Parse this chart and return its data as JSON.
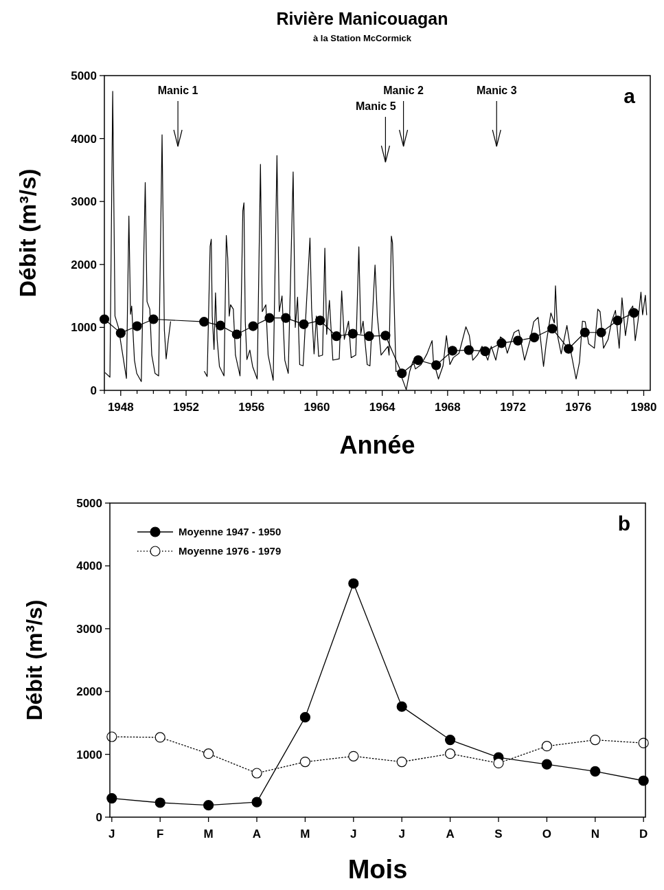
{
  "chart_data": [
    {
      "type": "line",
      "title": "Rivière Manicouagan",
      "subtitle": "à la Station McCormick",
      "xlabel": "Année",
      "ylabel": "Débit (m³/s)",
      "xlim": [
        1947,
        1980.4
      ],
      "ylim": [
        0,
        5000
      ],
      "yticks": [
        0,
        1000,
        2000,
        3000,
        4000,
        5000
      ],
      "xticks": [
        {
          "value": 1947,
          "label": null
        },
        1948,
        {
          "value": 1949,
          "label": null
        },
        {
          "value": 1950,
          "label": null
        },
        {
          "value": 1951,
          "label": null
        },
        1952,
        {
          "value": 1953,
          "label": null
        },
        {
          "value": 1954,
          "label": null
        },
        {
          "value": 1955,
          "label": null
        },
        1956,
        {
          "value": 1957,
          "label": null
        },
        {
          "value": 1958,
          "label": null
        },
        {
          "value": 1959,
          "label": null
        },
        1960,
        {
          "value": 1961,
          "label": null
        },
        {
          "value": 1962,
          "label": null
        },
        {
          "value": 1963,
          "label": null
        },
        1964,
        {
          "value": 1965,
          "label": null
        },
        {
          "value": 1966,
          "label": null
        },
        {
          "value": 1967,
          "label": null
        },
        1968,
        {
          "value": 1969,
          "label": null
        },
        {
          "value": 1970,
          "label": null
        },
        {
          "value": 1971,
          "label": null
        },
        1972,
        {
          "value": 1973,
          "label": null
        },
        {
          "value": 1974,
          "label": null
        },
        {
          "value": 1975,
          "label": null
        },
        1976,
        {
          "value": 1977,
          "label": null
        },
        {
          "value": 1978,
          "label": null
        },
        {
          "value": 1979,
          "label": null
        },
        1980
      ],
      "annotations": [
        "a"
      ],
      "ref_lines": [
        {
          "axis": "x",
          "value": 1951.5,
          "label": "Manic 1"
        },
        {
          "axis": "x",
          "value": 1964.2,
          "label": "Manic 5"
        },
        {
          "axis": "x",
          "value": 1965.3,
          "label": "Manic 2"
        },
        {
          "axis": "x",
          "value": 1971.0,
          "label": "Manic 3"
        }
      ],
      "series": [
        {
          "color": "#000000",
          "marker": "none",
          "x": [
            1947.05,
            1947.34,
            1947.51,
            1947.65,
            1947.86,
            1948.35,
            1948.5,
            1948.6,
            1948.67,
            1948.84,
            1948.98,
            1949.26,
            1949.5,
            1949.61,
            1949.78,
            1949.9,
            1950.1,
            1950.32,
            1950.53,
            1950.67,
            1950.78,
            1950.9,
            1951.05,
            1952,
            1953.12,
            1953.29,
            1953.47,
            1953.54,
            1953.6,
            1953.71,
            1953.8,
            1953.9,
            1954.04,
            1954.32,
            1954.46,
            1954.55,
            1954.64,
            1954.72,
            1954.89,
            1955.02,
            1955.3,
            1955.47,
            1955.54,
            1955.62,
            1955.72,
            1955.9,
            1956.07,
            1956.35,
            1956.55,
            1956.66,
            1956.88,
            1957.02,
            1957.33,
            1957.56,
            1957.7,
            1957.87,
            1958.04,
            1958.25,
            1958.55,
            1958.68,
            1958.82,
            1958.95,
            1959.16,
            1959.58,
            1959.68,
            1959.83,
            1959.97,
            1960.11,
            1960.35,
            1960.49,
            1960.6,
            1960.77,
            1960.98,
            1961.37,
            1961.52,
            1961.68,
            1961.94,
            1962.1,
            1962.38,
            1962.57,
            1962.69,
            1962.83,
            1963.08,
            1963.25,
            1963.56,
            1963.7,
            1963.93,
            1964.35,
            1964.42,
            1964.56,
            1964.63,
            1964.77,
            1964.84,
            1965.05,
            1965.47,
            1965.68,
            1965.89,
            1966.03,
            1966.38,
            1966.74,
            1967.05,
            1967.13,
            1967.44,
            1967.72,
            1967.93,
            1968.14,
            1968.35,
            1968.7,
            1969.12,
            1969.33,
            1969.54,
            1969.82,
            1970.11,
            1970.46,
            1970.67,
            1970.95,
            1971.23,
            1971.44,
            1971.65,
            1972.07,
            1972.35,
            1972.71,
            1973.06,
            1973.27,
            1973.54,
            1973.87,
            1974.03,
            1974.32,
            1974.53,
            1974.6,
            1974.74,
            1974.95,
            1975.3,
            1975.58,
            1975.86,
            1976.07,
            1976.25,
            1976.42,
            1976.63,
            1976.98,
            1977.19,
            1977.33,
            1977.54,
            1977.82,
            1978.03,
            1978.27,
            1978.5,
            1978.67,
            1978.88,
            1979.09,
            1979.33,
            1979.48,
            1979.65,
            1979.83,
            1979.93,
            1980.1,
            1980.18
          ],
          "values": [
            280,
            210,
            4750,
            1180,
            1000,
            190,
            2770,
            1210,
            1340,
            480,
            270,
            140,
            3300,
            1410,
            1290,
            560,
            270,
            230,
            4060,
            960,
            500,
            780,
            1090,
            null,
            300,
            220,
            2290,
            2400,
            1180,
            650,
            1550,
            810,
            380,
            230,
            2460,
            2090,
            1180,
            1360,
            1290,
            560,
            230,
            2850,
            2980,
            1100,
            490,
            640,
            380,
            180,
            3590,
            1250,
            1360,
            560,
            160,
            3730,
            1250,
            1500,
            480,
            270,
            3470,
            1000,
            1480,
            410,
            390,
            2420,
            1300,
            580,
            1180,
            540,
            560,
            2260,
            890,
            1430,
            480,
            500,
            1580,
            810,
            1100,
            520,
            560,
            2280,
            900,
            1100,
            410,
            390,
            1990,
            1180,
            560,
            700,
            560,
            2450,
            2340,
            1000,
            300,
            310,
            10,
            300,
            470,
            340,
            410,
            580,
            790,
            470,
            180,
            390,
            870,
            410,
            520,
            590,
            1010,
            870,
            480,
            560,
            700,
            480,
            700,
            480,
            850,
            810,
            590,
            920,
            960,
            480,
            810,
            1090,
            1160,
            380,
            740,
            1230,
            1070,
            1660,
            850,
            580,
            1030,
            560,
            180,
            450,
            1100,
            1090,
            740,
            670,
            1290,
            1250,
            670,
            810,
            1090,
            1270,
            670,
            1470,
            870,
            1250,
            1340,
            790,
            1100,
            1560,
            1200,
            1510,
            1200
          ]
        },
        {
          "color": "#000000",
          "marker": "circle",
          "x": [
            1947.0,
            1948.0,
            1949.0,
            1950.0,
            1953.1,
            1954.1,
            1955.1,
            1956.1,
            1957.1,
            1958.1,
            1959.2,
            1960.2,
            1961.2,
            1962.2,
            1963.2,
            1964.2,
            1965.2,
            1966.2,
            1967.3,
            1968.3,
            1969.3,
            1970.3,
            1971.3,
            1972.3,
            1973.3,
            1974.4,
            1975.4,
            1976.4,
            1977.4,
            1978.4,
            1979.4
          ],
          "values": [
            1130,
            910,
            1020,
            1130,
            1090,
            1030,
            890,
            1020,
            1150,
            1150,
            1050,
            1110,
            860,
            900,
            860,
            870,
            270,
            480,
            400,
            630,
            640,
            620,
            750,
            790,
            840,
            980,
            660,
            920,
            920,
            1110,
            1230
          ]
        }
      ]
    },
    {
      "type": "line",
      "xlabel": "Mois",
      "ylabel": "Débit (m³/s)",
      "categories": [
        "J",
        "F",
        "M",
        "A",
        "M",
        "J",
        "J",
        "A",
        "S",
        "O",
        "N",
        "D"
      ],
      "ylim": [
        0,
        5000
      ],
      "yticks": [
        0,
        1000,
        2000,
        3000,
        4000,
        5000
      ],
      "legend": "top left",
      "marker": "circle",
      "annotations": [
        "b"
      ],
      "series": [
        {
          "name": "Moyenne 1947 - 1950",
          "color": "#000000",
          "line_style": "solid",
          "values": [
            300,
            230,
            190,
            240,
            1590,
            3720,
            1760,
            1230,
            950,
            840,
            730,
            580
          ]
        },
        {
          "name": "Moyenne 1976 - 1979",
          "color": "#000000",
          "line_style": "dotted",
          "values": [
            1280,
            1270,
            1010,
            700,
            880,
            970,
            880,
            1010,
            860,
            1130,
            1230,
            1180
          ]
        }
      ]
    }
  ]
}
